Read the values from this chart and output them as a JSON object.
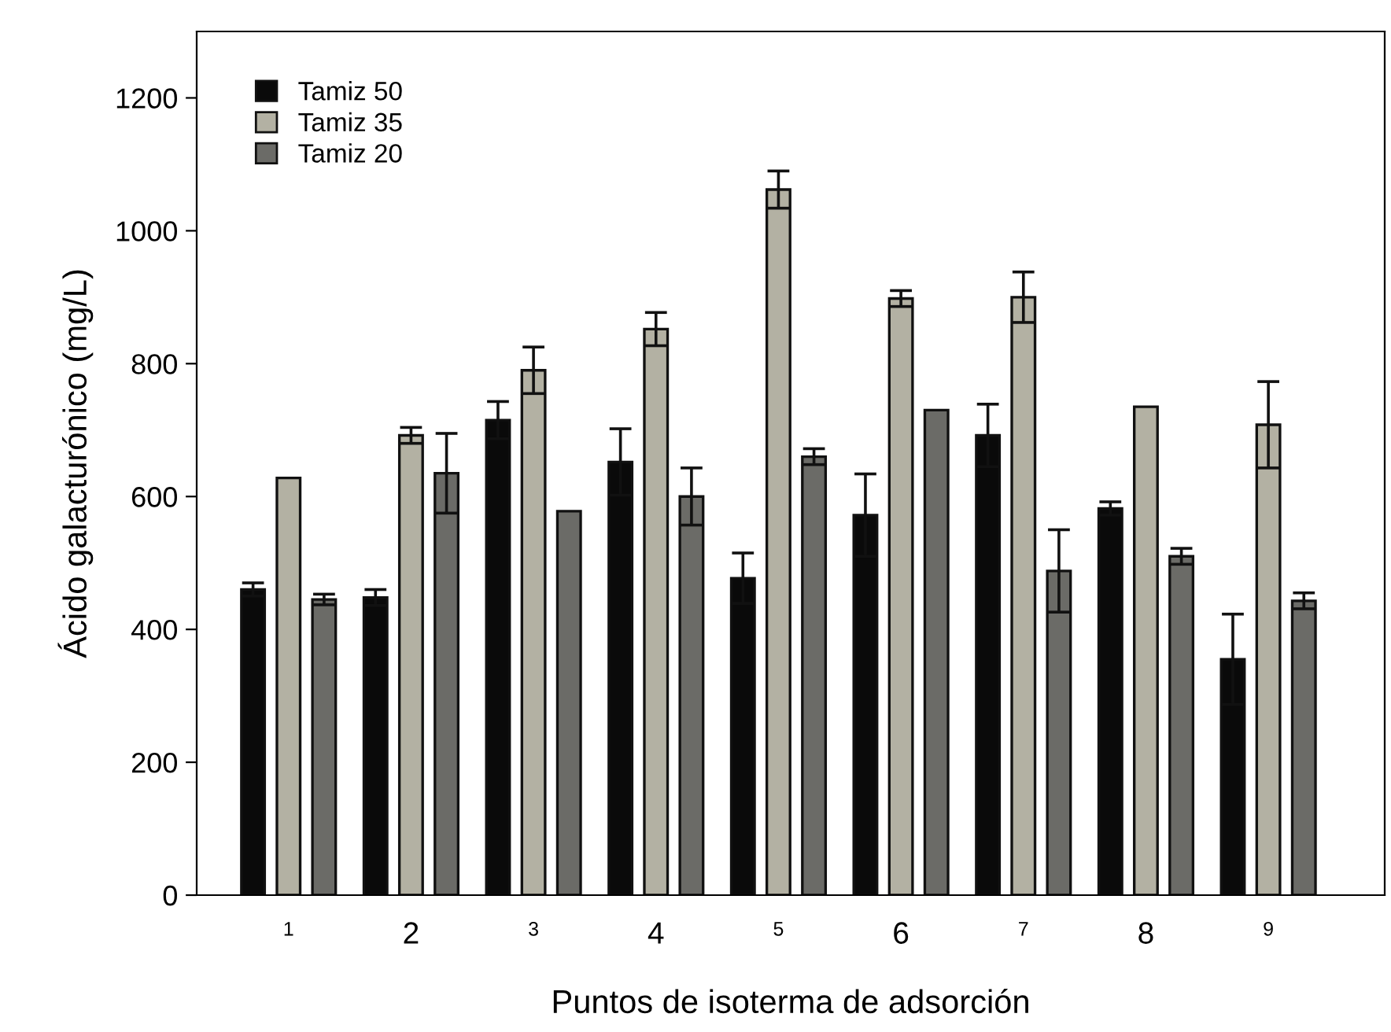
{
  "chart_data": {
    "type": "bar",
    "xlabel": "Puntos de isoterma de adsorción",
    "ylabel": "Ácido galacturónico (mg/L)",
    "categories": [
      "1",
      "2",
      "3",
      "4",
      "5",
      "6",
      "7",
      "8",
      "9"
    ],
    "series": [
      {
        "name": "Tamiz 50",
        "color": "#0a0a0a",
        "values": [
          460,
          448,
          715,
          652,
          477,
          572,
          692,
          582,
          355
        ],
        "errors": [
          10,
          12,
          28,
          50,
          38,
          62,
          47,
          10,
          68
        ]
      },
      {
        "name": "Tamiz 35",
        "color": "#b3b1a3",
        "values": [
          628,
          692,
          790,
          852,
          1062,
          898,
          900,
          735,
          708
        ],
        "errors": [
          null,
          12,
          35,
          25,
          28,
          12,
          38,
          null,
          65
        ]
      },
      {
        "name": "Tamiz 20",
        "color": "#6b6b67",
        "values": [
          445,
          635,
          578,
          600,
          660,
          730,
          488,
          510,
          443
        ],
        "errors": [
          8,
          60,
          null,
          43,
          12,
          null,
          62,
          12,
          12
        ]
      }
    ],
    "ylim": [
      0,
      1300
    ],
    "yticks": [
      0,
      200,
      400,
      600,
      800,
      1000,
      1200
    ],
    "grid": false,
    "legend": "top left"
  }
}
